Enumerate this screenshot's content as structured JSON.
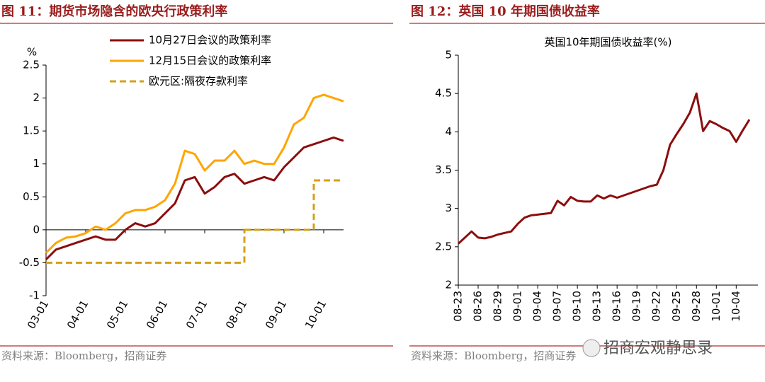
{
  "chart_data": [
    {
      "type": "line",
      "caption": "图 11：期货市场隐含的欧央行政策利率",
      "source": "资料来源：Bloomberg，招商证券",
      "y_label": "%",
      "categories": [
        "03-01",
        null,
        null,
        null,
        "04-01",
        null,
        null,
        null,
        "05-01",
        null,
        null,
        null,
        "06-01",
        null,
        null,
        null,
        "07-01",
        null,
        null,
        null,
        "08-01",
        null,
        null,
        null,
        "09-01",
        null,
        null,
        null,
        "10-01",
        null,
        null
      ],
      "series": [
        {
          "name": "10月27日会议的政策利率",
          "color": "#8b0e0e",
          "values": [
            -0.45,
            -0.3,
            -0.25,
            -0.2,
            -0.15,
            -0.1,
            -0.15,
            -0.15,
            0.0,
            0.1,
            0.05,
            0.1,
            0.25,
            0.4,
            0.75,
            0.8,
            0.55,
            0.65,
            0.8,
            0.85,
            0.7,
            0.75,
            0.8,
            0.75,
            0.95,
            1.1,
            1.25,
            1.3,
            1.35,
            1.4,
            1.35
          ]
        },
        {
          "name": "12月15日会议的政策利率",
          "color": "#ffa500",
          "values": [
            -0.35,
            -0.2,
            -0.12,
            -0.1,
            -0.05,
            0.05,
            0.0,
            0.1,
            0.25,
            0.3,
            0.3,
            0.35,
            0.45,
            0.7,
            1.2,
            1.15,
            0.9,
            1.05,
            1.05,
            1.2,
            1.0,
            1.05,
            1.0,
            1.0,
            1.25,
            1.6,
            1.7,
            2.0,
            2.05,
            2.0,
            1.95
          ]
        },
        {
          "name": "欧元区:隔夜存款利率",
          "color": "#d4a017",
          "dashed": true,
          "step": true,
          "values": [
            -0.5,
            -0.5,
            -0.5,
            -0.5,
            -0.5,
            -0.5,
            -0.5,
            -0.5,
            -0.5,
            -0.5,
            -0.5,
            -0.5,
            -0.5,
            -0.5,
            -0.5,
            -0.5,
            -0.5,
            -0.5,
            -0.5,
            -0.5,
            0,
            0,
            0,
            0,
            0,
            0,
            0,
            0.75,
            0.75,
            0.75,
            0.75
          ]
        }
      ],
      "ylim": [
        -1,
        2.5
      ],
      "yticks": [
        -1,
        -0.5,
        0,
        0.5,
        1,
        1.5,
        2,
        2.5
      ],
      "legend": "top-left"
    },
    {
      "type": "line",
      "caption": "图 12：英国 10 年期国债收益率",
      "source": "资料来源：Bloomberg，招商证券",
      "title": "英国10年期国债收益率(%)",
      "categories": [
        "08-23",
        null,
        null,
        "08-26",
        null,
        null,
        "08-29",
        null,
        null,
        "09-01",
        null,
        null,
        "09-04",
        null,
        null,
        "09-07",
        null,
        null,
        "09-10",
        null,
        null,
        "09-13",
        null,
        null,
        "09-16",
        null,
        null,
        "09-19",
        null,
        null,
        "09-22",
        null,
        null,
        "09-25",
        null,
        null,
        "09-28",
        null,
        null,
        "10-01",
        null,
        null,
        "10-04",
        null,
        null
      ],
      "values": [
        2.54,
        2.62,
        2.7,
        2.62,
        2.61,
        2.63,
        2.66,
        2.68,
        2.7,
        2.8,
        2.88,
        2.91,
        2.92,
        2.93,
        2.94,
        3.1,
        3.04,
        3.15,
        3.1,
        3.09,
        3.09,
        3.17,
        3.13,
        3.17,
        3.14,
        3.17,
        3.2,
        3.23,
        3.26,
        3.29,
        3.31,
        3.5,
        3.83,
        3.97,
        4.1,
        4.25,
        4.5,
        4.01,
        4.14,
        4.1,
        4.05,
        4.01,
        3.87,
        4.02,
        4.16
      ],
      "color": "#8b0e0e",
      "ylim": [
        2,
        5
      ],
      "yticks": [
        2,
        2.5,
        3,
        3.5,
        4,
        4.5,
        5
      ]
    }
  ],
  "watermark": "招商宏观静思录"
}
